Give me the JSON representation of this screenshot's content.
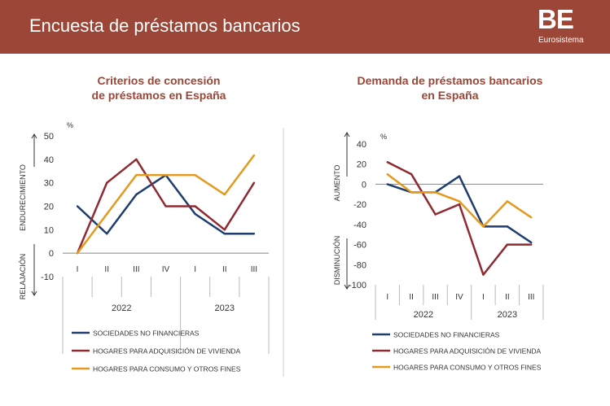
{
  "header": {
    "title": "Encuesta de préstamos bancarios",
    "logo_text": "BE",
    "logo_subtitle": "Eurosistema"
  },
  "colors": {
    "header_bg": "#9b4636",
    "title_text": "#9b4636",
    "series": [
      "#1f3d6e",
      "#8f2a30",
      "#e39a1d"
    ]
  },
  "chart_data": [
    {
      "type": "line",
      "title": "Criterios de concesión de préstamos en España",
      "title_lines": [
        "Criterios de concesión",
        "de préstamos en España"
      ],
      "unit": "%",
      "ylabel_top": "ENDURECIMIENTO",
      "ylabel_bottom": "RELAJACIÓN",
      "ylim": [
        -10,
        50
      ],
      "yticks": [
        50,
        40,
        30,
        20,
        10,
        0,
        -10
      ],
      "categories": [
        "I",
        "II",
        "III",
        "IV",
        "I",
        "II",
        "III"
      ],
      "years": [
        "2022",
        "2023"
      ],
      "series": [
        {
          "name": "SOCIEDADES NO FINANCIERAS",
          "values": [
            20,
            8.3,
            25,
            33.3,
            16.7,
            8.3,
            8.3
          ]
        },
        {
          "name": "HOGARES PARA ADQUISICIÓN DE VIVIENDA",
          "values": [
            0,
            30,
            40,
            20,
            20,
            10,
            30
          ]
        },
        {
          "name": "HOGARES PARA CONSUMO Y OTROS FINES",
          "values": [
            0,
            16.7,
            33.3,
            33.3,
            33.3,
            25,
            41.7
          ]
        }
      ]
    },
    {
      "type": "line",
      "title": "Demanda de préstamos bancarios en España",
      "title_lines": [
        "Demanda de préstamos bancarios",
        "en España"
      ],
      "unit": "%",
      "ylabel_top": "AUMENTO",
      "ylabel_bottom": "DISMINUCIÓN",
      "ylim": [
        -100,
        40
      ],
      "yticks": [
        40,
        20,
        0,
        -20,
        -40,
        -60,
        -80,
        -100
      ],
      "categories": [
        "I",
        "II",
        "III",
        "IV",
        "I",
        "II",
        "III"
      ],
      "years": [
        "2022",
        "2023"
      ],
      "series": [
        {
          "name": "SOCIEDADES NO FINANCIERAS",
          "values": [
            0,
            -8,
            -8,
            8,
            -42,
            -42,
            -58
          ]
        },
        {
          "name": "HOGARES PARA ADQUISICIÓN DE VIVIENDA",
          "values": [
            22,
            10,
            -30,
            -20,
            -90,
            -60,
            -60
          ]
        },
        {
          "name": "HOGARES PARA CONSUMO Y OTROS FINES",
          "values": [
            10,
            -8,
            -8,
            -17,
            -42,
            -17,
            -33
          ]
        }
      ]
    }
  ]
}
